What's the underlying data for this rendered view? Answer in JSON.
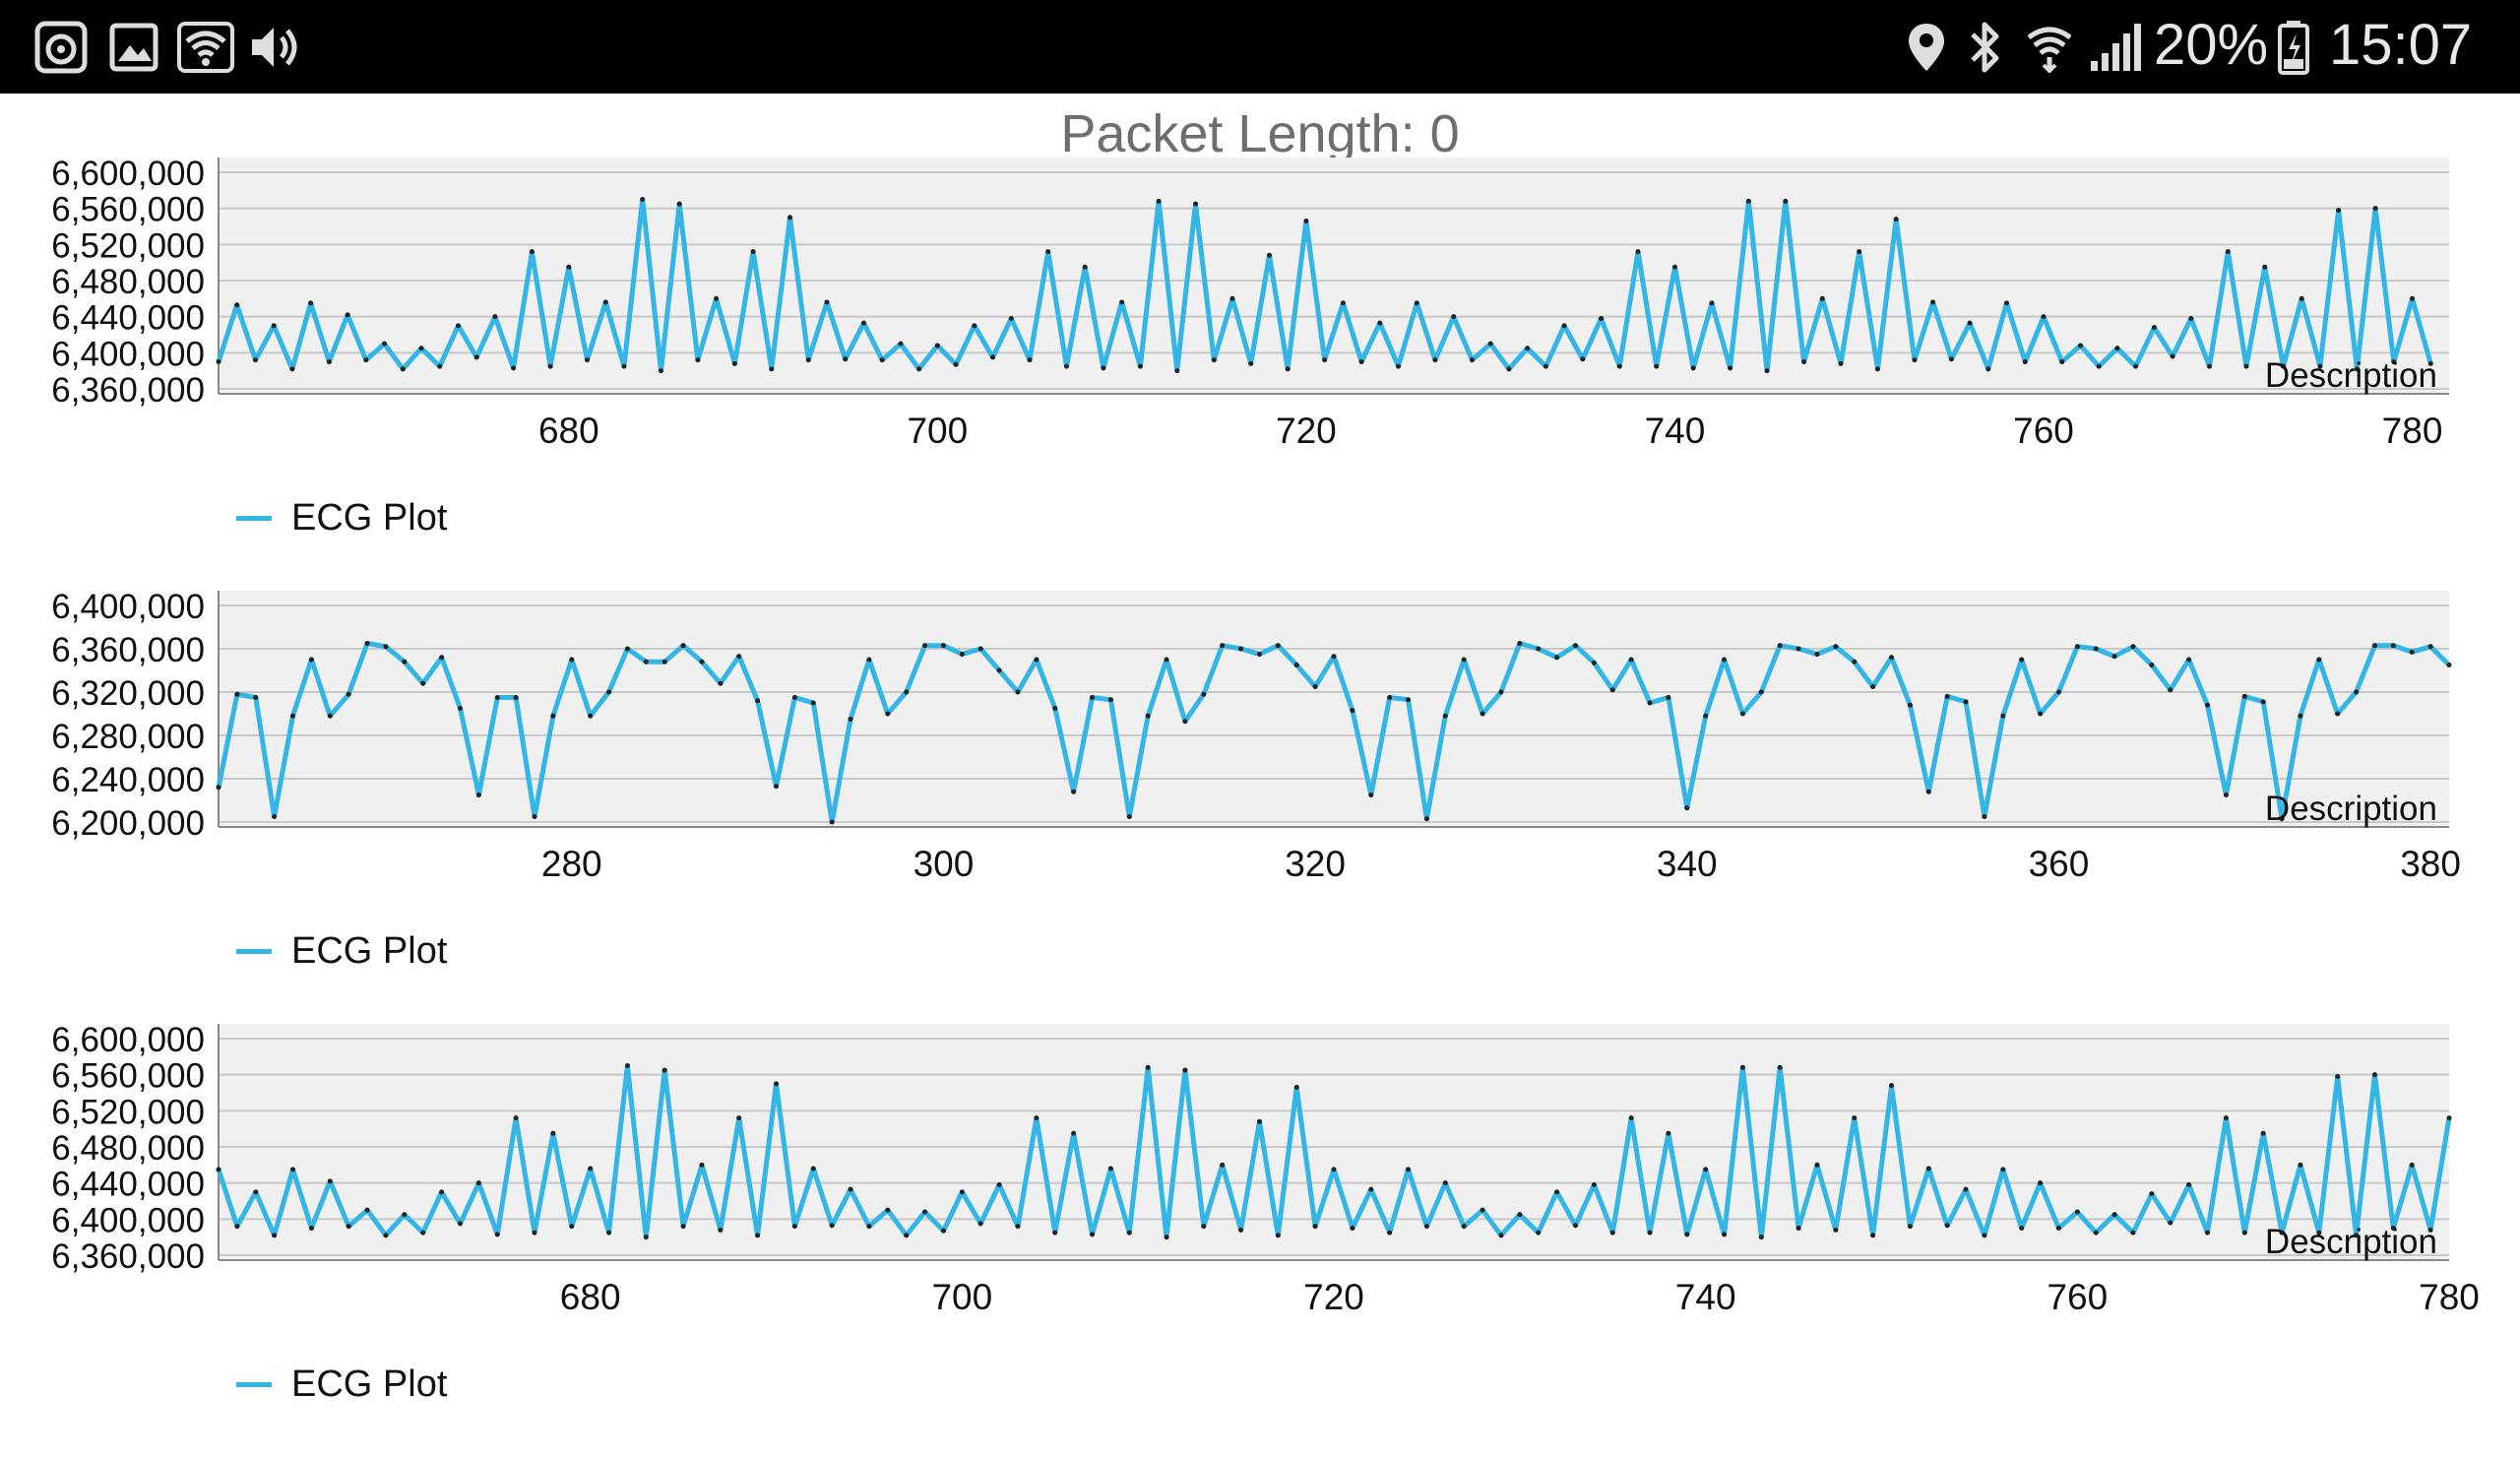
{
  "status_bar": {
    "battery": "20%",
    "time": "15:07",
    "icons_left": [
      "record-icon",
      "image-icon",
      "wifi-icon",
      "volume-icon"
    ],
    "icons_right": [
      "location-icon",
      "bluetooth-icon",
      "wifi-calling-icon",
      "signal-icon",
      "battery-icon"
    ]
  },
  "header": {
    "label": "Packet Length:",
    "value": "0"
  },
  "colors": {
    "line": "#33b5e5",
    "plot_bg": "#f0f0f0",
    "grid": "#c8c8c8"
  },
  "chart_data": [
    {
      "type": "line",
      "description": "Description",
      "legend": "ECG Plot",
      "xlim": [
        661,
        782
      ],
      "ylim": [
        6360000,
        6600000
      ],
      "x_ticks": [
        680,
        700,
        720,
        740,
        760,
        780
      ],
      "x_tick_labels": [
        "680",
        "700",
        "720",
        "740",
        "760",
        "780"
      ],
      "y_ticks": [
        6360000,
        6400000,
        6440000,
        6480000,
        6520000,
        6560000,
        6600000
      ],
      "y_tick_labels": [
        "6,360,000",
        "6,400,000",
        "6,440,000",
        "6,480,000",
        "6,520,000",
        "6,560,000",
        "6,600,000"
      ],
      "series": [
        {
          "name": "ECG Plot",
          "x_start": 661,
          "values": [
            6390000,
            6453000,
            6392000,
            6430000,
            6382000,
            6455000,
            6390000,
            6442000,
            6392000,
            6410000,
            6382000,
            6405000,
            6385000,
            6430000,
            6395000,
            6440000,
            6383000,
            6512000,
            6385000,
            6495000,
            6392000,
            6456000,
            6385000,
            6570000,
            6380000,
            6565000,
            6392000,
            6460000,
            6388000,
            6512000,
            6382000,
            6550000,
            6392000,
            6456000,
            6393000,
            6433000,
            6392000,
            6410000,
            6382000,
            6408000,
            6387000,
            6430000,
            6395000,
            6438000,
            6392000,
            6512000,
            6385000,
            6495000,
            6383000,
            6456000,
            6385000,
            6568000,
            6380000,
            6565000,
            6392000,
            6460000,
            6388000,
            6508000,
            6382000,
            6546000,
            6392000,
            6455000,
            6390000,
            6433000,
            6385000,
            6455000,
            6392000,
            6440000,
            6392000,
            6410000,
            6382000,
            6405000,
            6385000,
            6430000,
            6393000,
            6438000,
            6385000,
            6512000,
            6385000,
            6495000,
            6383000,
            6455000,
            6383000,
            6568000,
            6380000,
            6568000,
            6390000,
            6460000,
            6388000,
            6512000,
            6382000,
            6548000,
            6392000,
            6456000,
            6393000,
            6433000,
            6382000,
            6455000,
            6390000,
            6440000,
            6390000,
            6408000,
            6385000,
            6405000,
            6385000,
            6428000,
            6396000,
            6438000,
            6385000,
            6512000,
            6385000,
            6495000,
            6385000,
            6460000,
            6385000,
            6558000,
            6382000,
            6560000,
            6390000,
            6460000,
            6388000
          ]
        }
      ]
    },
    {
      "type": "line",
      "description": "Description",
      "legend": "ECG Plot",
      "xlim": [
        261,
        381
      ],
      "ylim": [
        6200000,
        6400000
      ],
      "x_ticks": [
        280,
        300,
        320,
        340,
        360,
        380
      ],
      "x_tick_labels": [
        "280",
        "300",
        "320",
        "340",
        "360",
        "380"
      ],
      "y_ticks": [
        6200000,
        6240000,
        6280000,
        6320000,
        6360000,
        6400000
      ],
      "y_tick_labels": [
        "6,200,000",
        "6,240,000",
        "6,280,000",
        "6,320,000",
        "6,360,000",
        "6,400,000"
      ],
      "series": [
        {
          "name": "ECG Plot",
          "x_start": 261,
          "values": [
            6232000,
            6318000,
            6315000,
            6205000,
            6298000,
            6350000,
            6298000,
            6318000,
            6365000,
            6362000,
            6348000,
            6328000,
            6352000,
            6305000,
            6225000,
            6315000,
            6315000,
            6205000,
            6298000,
            6350000,
            6298000,
            6320000,
            6360000,
            6348000,
            6348000,
            6363000,
            6348000,
            6328000,
            6353000,
            6312000,
            6233000,
            6315000,
            6310000,
            6200000,
            6295000,
            6350000,
            6300000,
            6320000,
            6363000,
            6363000,
            6355000,
            6360000,
            6340000,
            6320000,
            6350000,
            6305000,
            6228000,
            6315000,
            6313000,
            6205000,
            6298000,
            6350000,
            6293000,
            6318000,
            6363000,
            6360000,
            6355000,
            6363000,
            6345000,
            6325000,
            6353000,
            6303000,
            6225000,
            6315000,
            6313000,
            6203000,
            6298000,
            6350000,
            6300000,
            6320000,
            6365000,
            6360000,
            6352000,
            6363000,
            6347000,
            6322000,
            6350000,
            6310000,
            6315000,
            6213000,
            6298000,
            6350000,
            6300000,
            6320000,
            6363000,
            6360000,
            6355000,
            6362000,
            6348000,
            6325000,
            6352000,
            6308000,
            6228000,
            6316000,
            6311000,
            6205000,
            6298000,
            6350000,
            6300000,
            6320000,
            6362000,
            6360000,
            6353000,
            6362000,
            6345000,
            6322000,
            6350000,
            6308000,
            6225000,
            6316000,
            6311000,
            6203000,
            6298000,
            6350000,
            6300000,
            6320000,
            6363000,
            6363000,
            6357000,
            6362000,
            6345000
          ]
        }
      ]
    },
    {
      "type": "line",
      "description": "Description",
      "legend": "ECG Plot",
      "xlim": [
        660,
        780
      ],
      "ylim": [
        6360000,
        6600000
      ],
      "x_ticks": [
        680,
        700,
        720,
        740,
        760,
        780
      ],
      "x_tick_labels": [
        "680",
        "700",
        "720",
        "740",
        "760",
        "780"
      ],
      "y_ticks": [
        6360000,
        6400000,
        6440000,
        6480000,
        6520000,
        6560000,
        6600000
      ],
      "y_tick_labels": [
        "6,360,000",
        "6,400,000",
        "6,440,000",
        "6,480,000",
        "6,520,000",
        "6,560,000",
        "6,600,000"
      ],
      "series": [
        {
          "name": "ECG Plot",
          "x_start": 660,
          "values": [
            6455000,
            6392000,
            6430000,
            6382000,
            6455000,
            6390000,
            6442000,
            6392000,
            6410000,
            6382000,
            6405000,
            6385000,
            6430000,
            6395000,
            6440000,
            6383000,
            6512000,
            6385000,
            6495000,
            6392000,
            6456000,
            6385000,
            6570000,
            6380000,
            6565000,
            6392000,
            6460000,
            6388000,
            6512000,
            6382000,
            6550000,
            6392000,
            6456000,
            6393000,
            6433000,
            6392000,
            6410000,
            6382000,
            6408000,
            6387000,
            6430000,
            6395000,
            6438000,
            6392000,
            6512000,
            6385000,
            6495000,
            6383000,
            6456000,
            6385000,
            6568000,
            6380000,
            6565000,
            6392000,
            6460000,
            6388000,
            6508000,
            6382000,
            6546000,
            6392000,
            6455000,
            6390000,
            6433000,
            6385000,
            6455000,
            6392000,
            6440000,
            6392000,
            6410000,
            6382000,
            6405000,
            6385000,
            6430000,
            6393000,
            6438000,
            6385000,
            6512000,
            6385000,
            6495000,
            6383000,
            6455000,
            6383000,
            6568000,
            6380000,
            6568000,
            6390000,
            6460000,
            6388000,
            6512000,
            6382000,
            6548000,
            6392000,
            6456000,
            6393000,
            6433000,
            6382000,
            6455000,
            6390000,
            6440000,
            6390000,
            6408000,
            6385000,
            6405000,
            6385000,
            6428000,
            6396000,
            6438000,
            6385000,
            6512000,
            6385000,
            6495000,
            6385000,
            6460000,
            6385000,
            6558000,
            6382000,
            6560000,
            6390000,
            6460000,
            6388000,
            6512000
          ]
        }
      ]
    }
  ]
}
